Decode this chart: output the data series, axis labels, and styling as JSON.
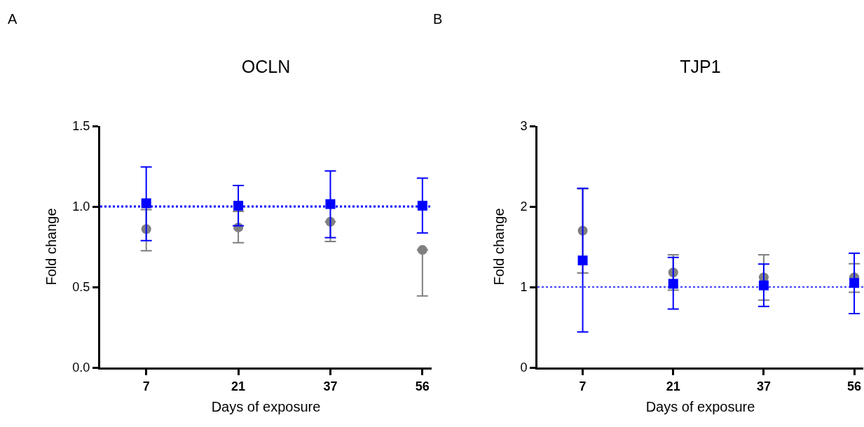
{
  "chart_data": [
    {
      "type": "scatter",
      "title": "OCLN",
      "xlabel": "Days of exposure",
      "ylabel": "Fold change",
      "annotations": [
        "A"
      ],
      "categories": [
        "7",
        "21",
        "37",
        "56"
      ],
      "ylim": [
        0,
        1.5
      ],
      "yticks": [
        {
          "value": 0,
          "label": "0.0"
        },
        {
          "value": 0.5,
          "label": "0.5"
        },
        {
          "value": 1,
          "label": "1.0"
        },
        {
          "value": 1.5,
          "label": "1.5"
        }
      ],
      "grid": false,
      "series": [
        {
          "color": "#808080",
          "marker": "circle",
          "values": [
            0.86,
            0.87,
            0.905,
            0.73
          ],
          "errors": [
            [
              0.725,
              0.98
            ],
            [
              0.775,
              0.97
            ],
            [
              0.783,
              0.905
            ],
            [
              0.445,
              0.73
            ]
          ]
        },
        {
          "color": "#0000ff",
          "marker": "square",
          "values": [
            1.02,
            1.005,
            1.015,
            1.005
          ],
          "errors": [
            [
              0.788,
              1.246
            ],
            [
              0.88,
              1.13
            ],
            [
              0.807,
              1.221
            ],
            [
              0.836,
              1.176
            ]
          ]
        }
      ],
      "ref_lines": [
        {
          "axis": "y",
          "value": 1,
          "color": "#0000ff",
          "line_style": "dotted"
        }
      ]
    },
    {
      "type": "scatter",
      "title": "TJP1",
      "xlabel": "Days of exposure",
      "ylabel": "Fold change",
      "annotations": [
        "B"
      ],
      "categories": [
        "7",
        "21",
        "37",
        "56"
      ],
      "ylim": [
        0,
        3
      ],
      "yticks": [
        0,
        1,
        2,
        3
      ],
      "grid": false,
      "series": [
        {
          "color": "#808080",
          "marker": "circle",
          "values": [
            1.7,
            1.18,
            1.12,
            1.12
          ],
          "errors": [
            [
              1.175,
              2.22
            ],
            [
              0.96,
              1.4
            ],
            [
              0.837,
              1.4
            ],
            [
              0.935,
              1.29
            ]
          ]
        },
        {
          "color": "#0000ff",
          "marker": "square",
          "values": [
            1.33,
            1.04,
            1.02,
            1.05
          ],
          "errors": [
            [
              0.442,
              2.226
            ],
            [
              0.726,
              1.367
            ],
            [
              0.758,
              1.285
            ],
            [
              0.67,
              1.42
            ]
          ]
        }
      ],
      "ref_lines": [
        {
          "axis": "y",
          "value": 1,
          "color": "#0000ff",
          "line_style": "dotted"
        }
      ]
    }
  ]
}
